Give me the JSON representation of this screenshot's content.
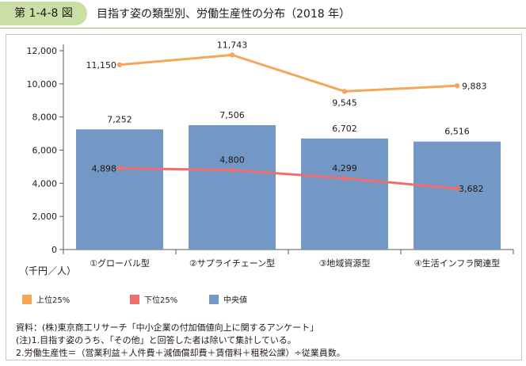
{
  "figure": {
    "number": "第 1-4-8 図",
    "title": "目指す姿の類型別、労働生産性の分布（2018 年）"
  },
  "colors": {
    "badge": "#c9dfa6",
    "bar": "#7398c5",
    "upper": "#f5a65b",
    "lower": "#ef6f6f",
    "axis": "#595959"
  },
  "chart_data": {
    "type": "bar",
    "categories": [
      "①グローバル型",
      "②サプライチェーン型",
      "③地域資源型",
      "④生活インフラ関連型"
    ],
    "series": [
      {
        "name": "中央値",
        "type": "bar",
        "color": "#7398c5",
        "values": [
          7252,
          7506,
          6702,
          6516
        ],
        "labels": [
          "7,252",
          "7,506",
          "6,702",
          "6,516"
        ]
      },
      {
        "name": "上位25%",
        "type": "line",
        "color": "#f5a65b",
        "values": [
          11150,
          11743,
          9545,
          9883
        ],
        "labels": [
          "11,150",
          "11,743",
          "9,545",
          "9,883"
        ]
      },
      {
        "name": "下位25%",
        "type": "line",
        "color": "#ef6f6f",
        "values": [
          4898,
          4800,
          4299,
          3682
        ],
        "labels": [
          "4,898",
          "4,800",
          "4,299",
          "3,682"
        ]
      }
    ],
    "ylim": [
      0,
      12000
    ],
    "yticks": [
      0,
      2000,
      4000,
      6000,
      8000,
      10000,
      12000
    ],
    "ytick_labels": [
      "0",
      "2,000",
      "4,000",
      "6,000",
      "8,000",
      "10,000",
      "12,000"
    ],
    "ylabel": "（千円／人）",
    "grid": false,
    "legend_position": "bottom"
  },
  "notes": [
    "資料：(株)東京商工リサーチ「中小企業の付加価値向上に関するアンケート」",
    "(注)1.目指す姿のうち、「その他」と回答した者は除いて集計している。",
    "2.労働生産性＝（営業利益＋人件費＋減価償却費＋賃借料＋租税公課）÷従業員数。"
  ]
}
